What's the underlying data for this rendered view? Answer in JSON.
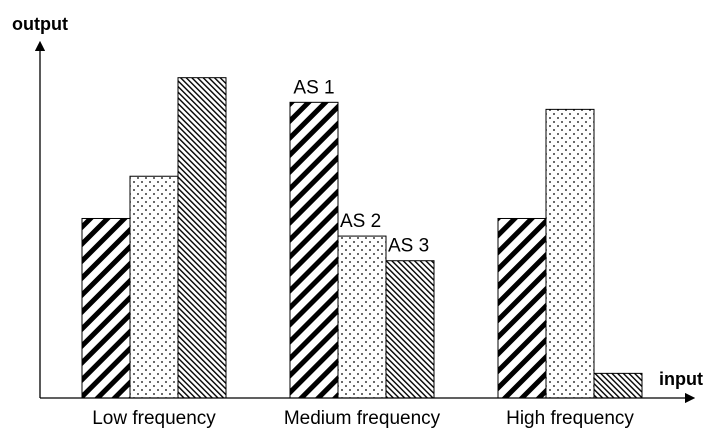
{
  "chart_data": {
    "type": "bar",
    "xlabel": "input",
    "ylabel": "output",
    "categories": [
      "Low frequency",
      "Medium frequency",
      "High frequency"
    ],
    "series": [
      {
        "pattern": "wide-diagonal-hatch",
        "values": [
          51,
          84,
          51
        ]
      },
      {
        "pattern": "dots",
        "values": [
          63,
          46,
          82
        ]
      },
      {
        "pattern": "fine-diagonal-hatch",
        "values": [
          91,
          39,
          7
        ]
      }
    ],
    "annotations": [
      {
        "text": "AS 1",
        "category": 1,
        "series": 0
      },
      {
        "text": "AS 2",
        "category": 1,
        "series": 1
      },
      {
        "text": "AS 3",
        "category": 1,
        "series": 2
      }
    ],
    "ylim": [
      0,
      100
    ],
    "grid": false,
    "legend": "none",
    "colors": {
      "stroke": "#000000",
      "background": "#ffffff"
    }
  }
}
